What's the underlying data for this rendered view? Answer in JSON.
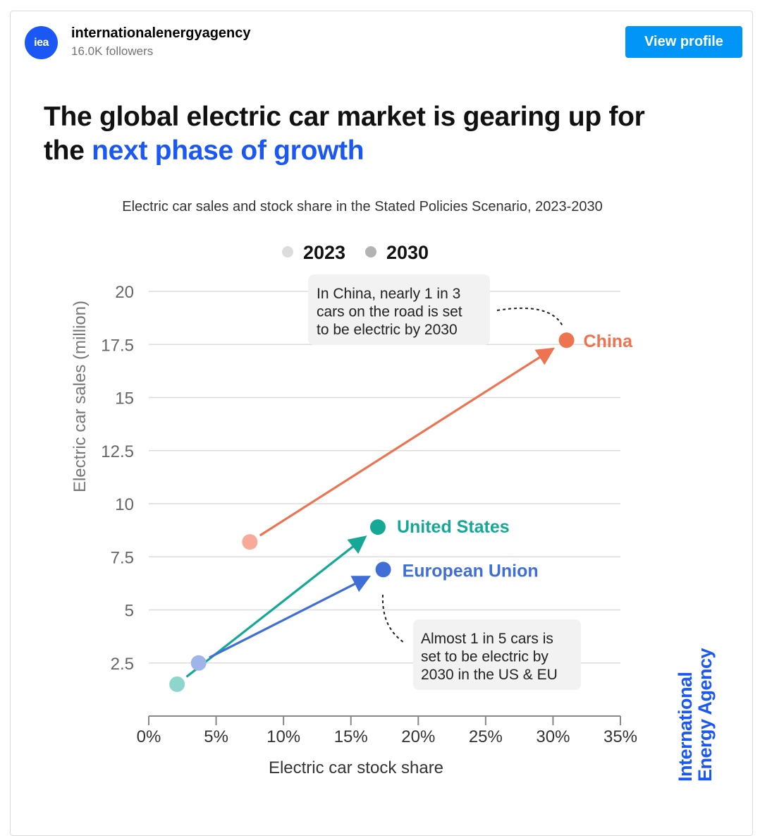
{
  "post": {
    "account_name": "internationalenergyagency",
    "followers": "16.0K followers",
    "avatar_text": "iea",
    "view_profile_label": "View profile"
  },
  "headline": {
    "part1": "The global electric car market is gearing up for",
    "part2_prefix": "the ",
    "part2_accent": "next phase of growth"
  },
  "branding": {
    "line1": "International",
    "line2": "Energy Agency"
  },
  "colors": {
    "brand_blue": "#1a57f5",
    "button_blue": "#0095f6",
    "china": "#ee7350",
    "china_light": "#f8aa98",
    "us": "#15a896",
    "us_light": "#8ed6cc",
    "eu": "#3f6fd6",
    "eu_light": "#9fb5ea"
  },
  "chart_data": {
    "type": "scatter",
    "title": "Electric car sales and stock share in the Stated Policies Scenario, 2023-2030",
    "xlabel": "Electric car stock share",
    "ylabel": "Electric car sales (million)",
    "xlim": [
      0,
      35
    ],
    "ylim": [
      0,
      20
    ],
    "x_ticks": [
      "0%",
      "5%",
      "10%",
      "15%",
      "20%",
      "25%",
      "30%",
      "35%"
    ],
    "x_tick_values": [
      0,
      5,
      10,
      15,
      20,
      25,
      30,
      35
    ],
    "y_ticks": [
      "2.5",
      "5",
      "7.5",
      "10",
      "12.5",
      "15",
      "17.5",
      "20"
    ],
    "y_tick_values": [
      2.5,
      5,
      7.5,
      10,
      12.5,
      15,
      17.5,
      20
    ],
    "grid": true,
    "legend": {
      "placement": "top-center",
      "entries": [
        {
          "label": "2023",
          "color": "#dcdcdc"
        },
        {
          "label": "2030",
          "color": "#b3b3b3"
        }
      ]
    },
    "series": [
      {
        "name": "China",
        "color": "#ee7350",
        "light_color": "#f8aa98",
        "points": [
          {
            "year": "2023",
            "x": 7.5,
            "y": 8.2
          },
          {
            "year": "2030",
            "x": 31.0,
            "y": 17.7
          }
        ]
      },
      {
        "name": "United States",
        "color": "#15a896",
        "light_color": "#8ed6cc",
        "points": [
          {
            "year": "2023",
            "x": 2.1,
            "y": 1.5
          },
          {
            "year": "2030",
            "x": 17.0,
            "y": 8.9
          }
        ]
      },
      {
        "name": "European Union",
        "color": "#3f6fd6",
        "light_color": "#9fb5ea",
        "points": [
          {
            "year": "2023",
            "x": 3.7,
            "y": 2.5
          },
          {
            "year": "2030",
            "x": 17.4,
            "y": 6.9
          }
        ]
      }
    ],
    "annotations": [
      {
        "target": "China",
        "lines": [
          "In China, nearly 1 in 3",
          "cars on the road is set",
          "to be electric by 2030"
        ]
      },
      {
        "target": "United States & European Union",
        "lines": [
          "Almost 1 in 5 cars is",
          "set to be electric by",
          "2030 in the US & EU"
        ]
      }
    ]
  }
}
